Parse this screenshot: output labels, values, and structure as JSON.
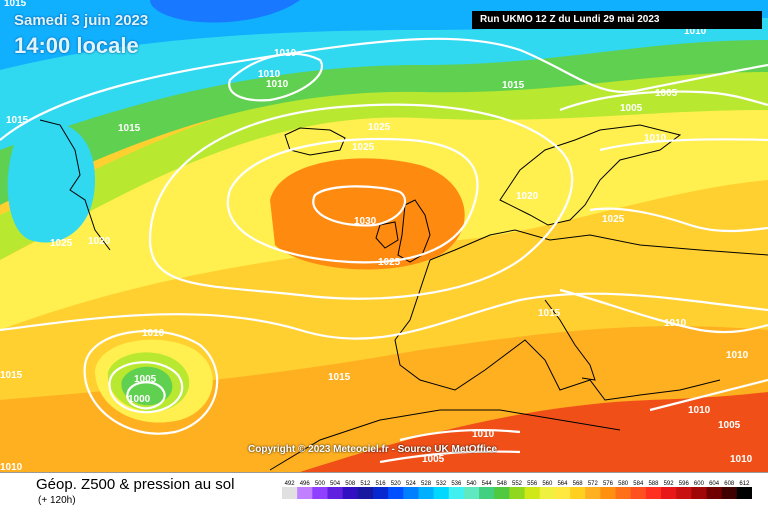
{
  "header": {
    "date": "Samedi 3 juin 2023",
    "time": "14:00 locale",
    "run": "Run UKMO 12 Z du Lundi 29 mai 2023"
  },
  "copyright": "Copyright © 2023 Meteociel.fr - Source UK MetOffice",
  "footer": {
    "title": "Géop. Z500 & pression au sol",
    "subtitle": "(+ 120h)"
  },
  "isobar_labels": [
    "1015",
    "1010",
    "1010",
    "1010",
    "1015",
    "1005",
    "1005",
    "1010",
    "1015",
    "1015",
    "1025",
    "1025",
    "1030",
    "1025",
    "1020",
    "1025",
    "1020",
    "1025",
    "1015",
    "1010",
    "1010",
    "1005",
    "1000",
    "1015",
    "1015",
    "1010",
    "1010",
    "1005",
    "1010",
    "1010",
    "1010",
    "1010",
    "1005"
  ],
  "legend": {
    "values": [
      "492",
      "496",
      "500",
      "504",
      "508",
      "512",
      "516",
      "520",
      "524",
      "528",
      "532",
      "536",
      "540",
      "544",
      "548",
      "552",
      "556",
      "560",
      "564",
      "568",
      "572",
      "576",
      "580",
      "584",
      "588",
      "592",
      "596",
      "600",
      "604",
      "608",
      "612"
    ],
    "colors": [
      "#e0e0e0",
      "#c080ff",
      "#9040ff",
      "#6020e0",
      "#3010c0",
      "#1818a0",
      "#0828d0",
      "#0050ff",
      "#0080ff",
      "#00b0ff",
      "#00d8ff",
      "#40f0f0",
      "#60e8c0",
      "#40d080",
      "#50c840",
      "#90d820",
      "#d0e818",
      "#f0f040",
      "#ffe840",
      "#ffd020",
      "#ffb020",
      "#ff9010",
      "#ff7018",
      "#ff5020",
      "#ff3020",
      "#e81818",
      "#c81010",
      "#a00808",
      "#700000",
      "#400000",
      "#000000"
    ]
  },
  "colors": {
    "field": {
      "cyan": "#30d8f0",
      "sky": "#10b0ff",
      "blue": "#1878ff",
      "green": "#60d050",
      "lime": "#b8e830",
      "yellow": "#fff050",
      "gold": "#ffd030",
      "orange": "#ffb020",
      "deep_orange": "#ff8a10",
      "red": "#f05018"
    },
    "isobar": "#ffffff",
    "coast": "#000000"
  }
}
